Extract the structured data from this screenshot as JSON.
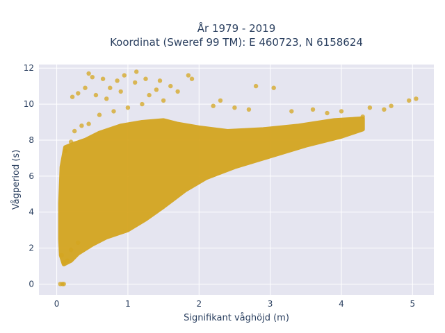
{
  "chart_data": {
    "type": "scatter",
    "title_line1": "År 1979 - 2019",
    "title_line2": "Koordinat (Sweref 99 TM): E 460723, N 6158624",
    "xlabel": "Signifikant våghöjd (m)",
    "ylabel": "Vågperiod (s)",
    "xlim": [
      -0.25,
      5.3
    ],
    "ylim": [
      -0.6,
      12.2
    ],
    "xticks": [
      0,
      1,
      2,
      3,
      4,
      5
    ],
    "yticks": [
      0,
      2,
      4,
      6,
      8,
      10,
      12
    ],
    "grid": true,
    "marker_color": "#d4a520",
    "plot_bg": "#e5e5f0",
    "points": [
      [
        0.05,
        0.0
      ],
      [
        0.08,
        0.0
      ],
      [
        0.1,
        0.0
      ],
      [
        0.07,
        1.6
      ],
      [
        0.1,
        1.2
      ],
      [
        0.15,
        1.3
      ],
      [
        0.2,
        1.9
      ],
      [
        0.3,
        2.3
      ],
      [
        0.2,
        7.9
      ],
      [
        0.12,
        7.4
      ],
      [
        0.25,
        8.5
      ],
      [
        0.35,
        8.8
      ],
      [
        0.45,
        8.9
      ],
      [
        0.6,
        9.4
      ],
      [
        0.8,
        9.6
      ],
      [
        1.0,
        9.8
      ],
      [
        1.2,
        10.0
      ],
      [
        1.5,
        10.2
      ],
      [
        0.22,
        10.4
      ],
      [
        0.3,
        10.6
      ],
      [
        0.4,
        10.9
      ],
      [
        0.55,
        10.5
      ],
      [
        0.7,
        10.3
      ],
      [
        0.9,
        10.7
      ],
      [
        1.1,
        11.2
      ],
      [
        1.3,
        10.5
      ],
      [
        0.45,
        11.7
      ],
      [
        0.5,
        11.5
      ],
      [
        0.65,
        11.4
      ],
      [
        0.95,
        11.6
      ],
      [
        1.12,
        11.8
      ],
      [
        1.25,
        11.4
      ],
      [
        1.45,
        11.3
      ],
      [
        1.85,
        11.6
      ],
      [
        1.9,
        11.4
      ],
      [
        2.3,
        10.2
      ],
      [
        2.8,
        11.0
      ],
      [
        3.05,
        10.9
      ],
      [
        3.3,
        9.6
      ],
      [
        3.6,
        9.7
      ],
      [
        3.8,
        9.5
      ],
      [
        4.0,
        9.6
      ],
      [
        4.3,
        9.3
      ],
      [
        4.4,
        9.8
      ],
      [
        4.7,
        9.9
      ],
      [
        4.6,
        9.7
      ],
      [
        4.95,
        10.2
      ],
      [
        5.05,
        10.3
      ],
      [
        2.7,
        9.7
      ],
      [
        2.5,
        9.8
      ],
      [
        2.2,
        9.9
      ],
      [
        1.6,
        11.0
      ],
      [
        1.7,
        10.7
      ],
      [
        1.4,
        10.8
      ],
      [
        0.75,
        10.9
      ],
      [
        0.85,
        11.3
      ]
    ]
  }
}
